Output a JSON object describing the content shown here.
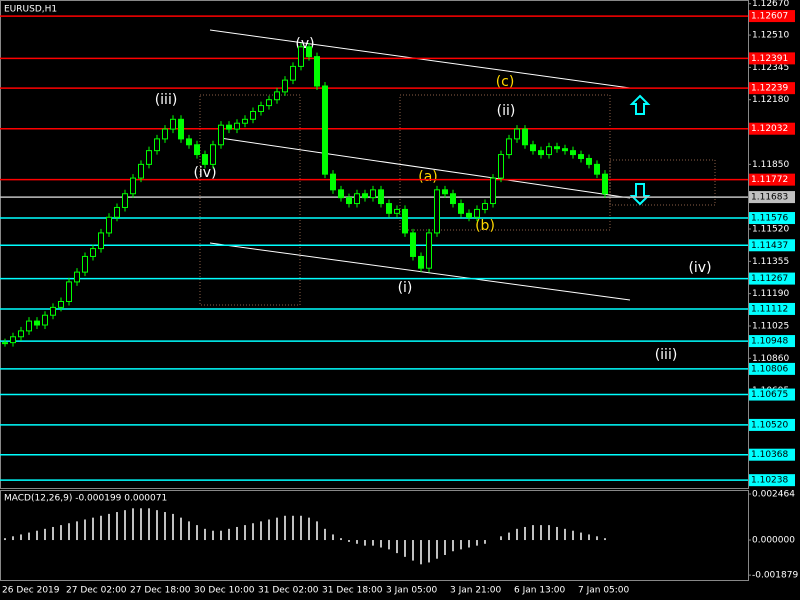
{
  "chart_data": {
    "type": "candlestick",
    "title": "EURUSD,H1",
    "up_color": "#00ff00",
    "x_labels": [
      "26 Dec 2019",
      "27 Dec 02:00",
      "27 Dec 18:00",
      "30 Dec 10:00",
      "31 Dec 02:00",
      "31 Dec 18:00",
      "3 Jan 05:00",
      "3 Jan 21:00",
      "6 Jan 13:00",
      "7 Jan 05:00"
    ],
    "close": [
      1.1094,
      1.1097,
      1.11,
      1.1105,
      1.1103,
      1.1108,
      1.1112,
      1.1115,
      1.1125,
      1.113,
      1.1138,
      1.1142,
      1.115,
      1.1158,
      1.1163,
      1.117,
      1.1178,
      1.1185,
      1.1192,
      1.1198,
      1.1203,
      1.1208,
      1.1198,
      1.1195,
      1.119,
      1.1185,
      1.1195,
      1.1205,
      1.1203,
      1.1206,
      1.1208,
      1.1212,
      1.1215,
      1.1218,
      1.1222,
      1.1228,
      1.1235,
      1.1245,
      1.124,
      1.1225,
      1.118,
      1.1172,
      1.1168,
      1.1165,
      1.117,
      1.1168,
      1.1172,
      1.1165,
      1.116,
      1.1162,
      1.115,
      1.1138,
      1.1132,
      1.115,
      1.1172,
      1.117,
      1.1165,
      1.116,
      1.1158,
      1.1162,
      1.1165,
      1.1178,
      1.119,
      1.1198,
      1.1203,
      1.1195,
      1.1192,
      1.119,
      1.1194,
      1.1193,
      1.1192,
      1.119,
      1.1188,
      1.1185,
      1.118,
      1.117
    ],
    "ylim": [
      1.10198,
      1.12689
    ],
    "yticks": [
      {
        "value": 1.1267,
        "label": "1.12670"
      },
      {
        "value": 1.1251,
        "label": "1.12510"
      },
      1.12345,
      {
        "value": 1.1218,
        "label": "1.12180"
      },
      1.12015,
      {
        "value": 1.1185,
        "label": "1.11850"
      },
      1.11685,
      {
        "value": 1.1152,
        "label": "1.11520"
      },
      1.11355,
      {
        "value": 1.1119,
        "label": "1.11190"
      },
      1.11025,
      {
        "value": 1.1086,
        "label": "1.10860"
      },
      1.10695,
      {
        "value": 1.1053,
        "label": "1.10530"
      },
      1.10365
    ],
    "levels": [
      {
        "value": 1.12607,
        "color": "#ff0000"
      },
      {
        "value": 1.12391,
        "color": "#ff0000"
      },
      {
        "value": 1.12239,
        "color": "#ff0000"
      },
      {
        "value": 1.12032,
        "color": "#ff0000"
      },
      {
        "value": 1.11772,
        "color": "#ff0000"
      },
      {
        "value": 1.11683,
        "color": "#c0c0c0"
      },
      {
        "value": 1.11576,
        "color": "#00ffff"
      },
      {
        "value": 1.11437,
        "color": "#00ffff"
      },
      {
        "value": 1.11267,
        "color": "#00ffff"
      },
      {
        "value": 1.11112,
        "color": "#00ffff"
      },
      {
        "value": 1.10948,
        "color": "#00ffff"
      },
      {
        "value": 1.10806,
        "color": "#00ffff"
      },
      {
        "value": 1.10675,
        "color": "#00ffff"
      },
      {
        "value": 1.1052,
        "label": "1.10520",
        "color": "#00ffff"
      },
      {
        "value": 1.10368,
        "color": "#00ffff"
      },
      {
        "value": 1.10238,
        "color": "#00ffff"
      }
    ],
    "annotations": [
      {
        "text": "(v)"
      },
      {
        "text": "(c)"
      },
      {
        "text": "(iii)"
      },
      {
        "text": "(ii)"
      },
      {
        "text": "(iv)"
      },
      {
        "text": "(a)"
      },
      {
        "text": "(b)"
      },
      {
        "text": "(i)"
      },
      {
        "text": "(iv)"
      },
      {
        "text": "(iii)"
      }
    ],
    "macd": {
      "label": "MACD(12,26,9) -0.000199 0.000071",
      "color": "#c0c0c0",
      "values": [
        0.0001,
        0.0002,
        0.0003,
        0.0004,
        0.0005,
        0.0006,
        0.0007,
        0.0008,
        0.0009,
        0.001,
        0.0011,
        0.0012,
        0.0013,
        0.0014,
        0.0015,
        0.0016,
        0.0017,
        0.0017,
        0.0017,
        0.0016,
        0.0015,
        0.0014,
        0.0012,
        0.001,
        0.0008,
        0.0006,
        0.0005,
        0.0005,
        0.0006,
        0.0007,
        0.0008,
        0.0009,
        0.001,
        0.0011,
        0.0012,
        0.0013,
        0.0013,
        0.0013,
        0.0012,
        0.001,
        0.0006,
        0.0003,
        0.0001,
        -0.0001,
        -0.0002,
        -0.0003,
        -0.0003,
        -0.0004,
        -0.0005,
        -0.0007,
        -0.0009,
        -0.0011,
        -0.0013,
        -0.0012,
        -0.001,
        -0.0008,
        -0.0006,
        -0.0005,
        -0.0004,
        -0.0003,
        -0.0002,
        0.0,
        0.0002,
        0.0004,
        0.0006,
        0.0007,
        0.0008,
        0.0008,
        0.0008,
        0.0007,
        0.0006,
        0.0005,
        0.0004,
        0.0003,
        0.0002,
        0.0001
      ],
      "ylim": [
        -0.00214,
        0.00268
      ],
      "yticks": [
        0.002464,
        {
          "value": 0,
          "label": "0.000000"
        },
        -0.001879
      ]
    }
  }
}
